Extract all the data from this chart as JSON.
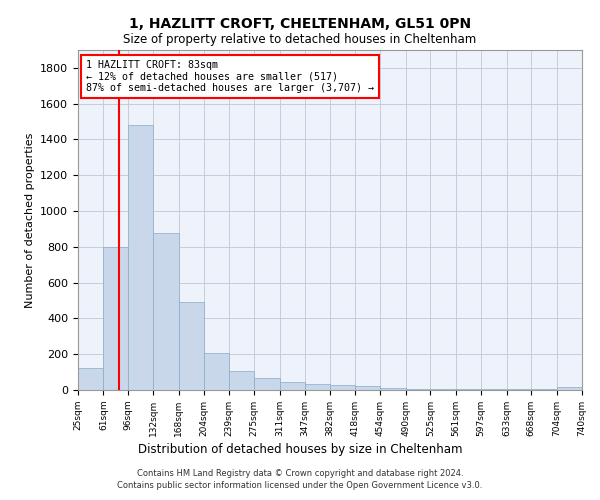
{
  "title": "1, HAZLITT CROFT, CHELTENHAM, GL51 0PN",
  "subtitle": "Size of property relative to detached houses in Cheltenham",
  "xlabel": "Distribution of detached houses by size in Cheltenham",
  "ylabel": "Number of detached properties",
  "bar_color": "#c8d8ea",
  "bar_edge_color": "#88aac8",
  "grid_color": "#c8ccd8",
  "background_color": "#eef2fa",
  "vline_x": 83,
  "vline_color": "red",
  "annotation_text": "1 HAZLITT CROFT: 83sqm\n← 12% of detached houses are smaller (517)\n87% of semi-detached houses are larger (3,707) →",
  "annotation_box_color": "red",
  "footer_text": "Contains HM Land Registry data © Crown copyright and database right 2024.\nContains public sector information licensed under the Open Government Licence v3.0.",
  "bin_edges": [
    25,
    61,
    96,
    132,
    168,
    204,
    239,
    275,
    311,
    347,
    382,
    418,
    454,
    490,
    525,
    561,
    597,
    633,
    668,
    704,
    740
  ],
  "bar_heights": [
    125,
    800,
    1480,
    880,
    490,
    205,
    105,
    65,
    45,
    35,
    30,
    25,
    10,
    8,
    5,
    5,
    5,
    5,
    5,
    15
  ],
  "ylim": [
    0,
    1900
  ],
  "yticks": [
    0,
    200,
    400,
    600,
    800,
    1000,
    1200,
    1400,
    1600,
    1800
  ]
}
